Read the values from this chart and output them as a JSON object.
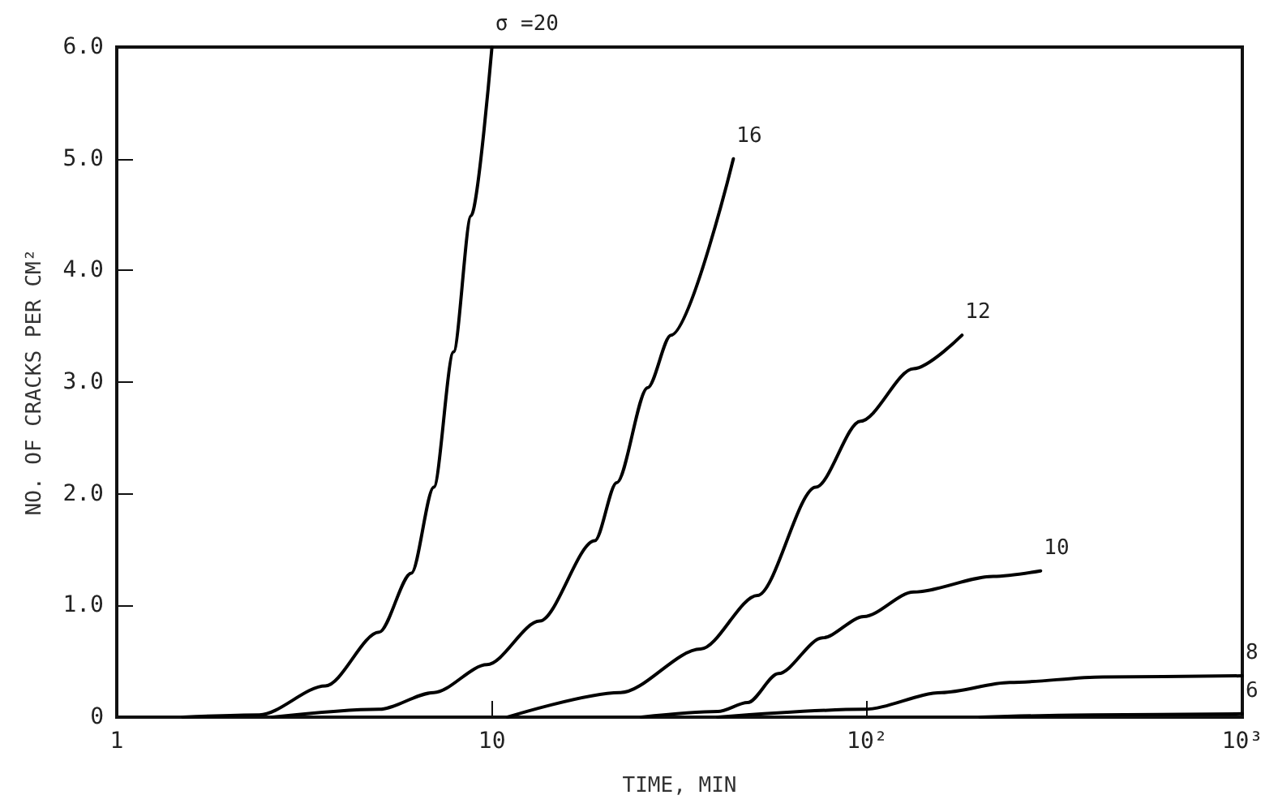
{
  "chart_data": {
    "type": "line",
    "xlabel": "TIME, MIN",
    "ylabel": "NO. OF CRACKS PER CM²",
    "log": "x",
    "xlim": [
      1,
      1000
    ],
    "xticks": [
      1,
      10,
      {
        "value": 100,
        "label": "10²"
      },
      {
        "value": 1000,
        "label": "10³"
      }
    ],
    "ylim": [
      0,
      6
    ],
    "yticks": [
      0,
      {
        "value": 1,
        "label": "1.0"
      },
      {
        "value": 2,
        "label": "2.0"
      },
      {
        "value": 3,
        "label": "3.0"
      },
      {
        "value": 4,
        "label": "4.0"
      },
      {
        "value": 5,
        "label": "5.0"
      },
      {
        "value": 6,
        "label": "6.0"
      }
    ],
    "grid": false,
    "legend": false,
    "marker": "none",
    "line_style": "solid",
    "series": [
      {
        "name": "σ =20",
        "color": "#000000",
        "x": [
          1.5,
          2.4,
          3.6,
          5,
          6.1,
          7,
          7.9,
          8.8,
          10
        ],
        "values": [
          0,
          0.02,
          0.28,
          0.76,
          1.29,
          2.06,
          3.27,
          4.49,
          6.0
        ]
      },
      {
        "name": "16",
        "color": "#000000",
        "x": [
          2.6,
          5,
          7,
          9.7,
          13.4,
          18.8,
          21.5,
          26,
          30,
          44
        ],
        "values": [
          0,
          0.07,
          0.22,
          0.47,
          0.86,
          1.58,
          2.1,
          2.95,
          3.42,
          5.0
        ]
      },
      {
        "name": "12",
        "color": "#000000",
        "x": [
          11,
          22,
          36,
          51,
          73,
          96,
          133,
          179
        ],
        "values": [
          0,
          0.22,
          0.61,
          1.09,
          2.06,
          2.65,
          3.12,
          3.42
        ]
      },
      {
        "name": "10",
        "color": "#000000",
        "x": [
          25,
          40,
          48,
          58,
          76,
          98,
          133,
          217,
          290
        ],
        "values": [
          0,
          0.05,
          0.13,
          0.39,
          0.71,
          0.9,
          1.12,
          1.26,
          1.31
        ]
      },
      {
        "name": "8",
        "color": "#000000",
        "x": [
          40,
          98,
          158,
          240,
          425,
          1000
        ],
        "values": [
          0,
          0.07,
          0.22,
          0.31,
          0.36,
          0.37
        ]
      },
      {
        "name": "6",
        "color": "#000000",
        "x": [
          200,
          400,
          1000
        ],
        "values": [
          0,
          0.02,
          0.03
        ]
      }
    ]
  }
}
